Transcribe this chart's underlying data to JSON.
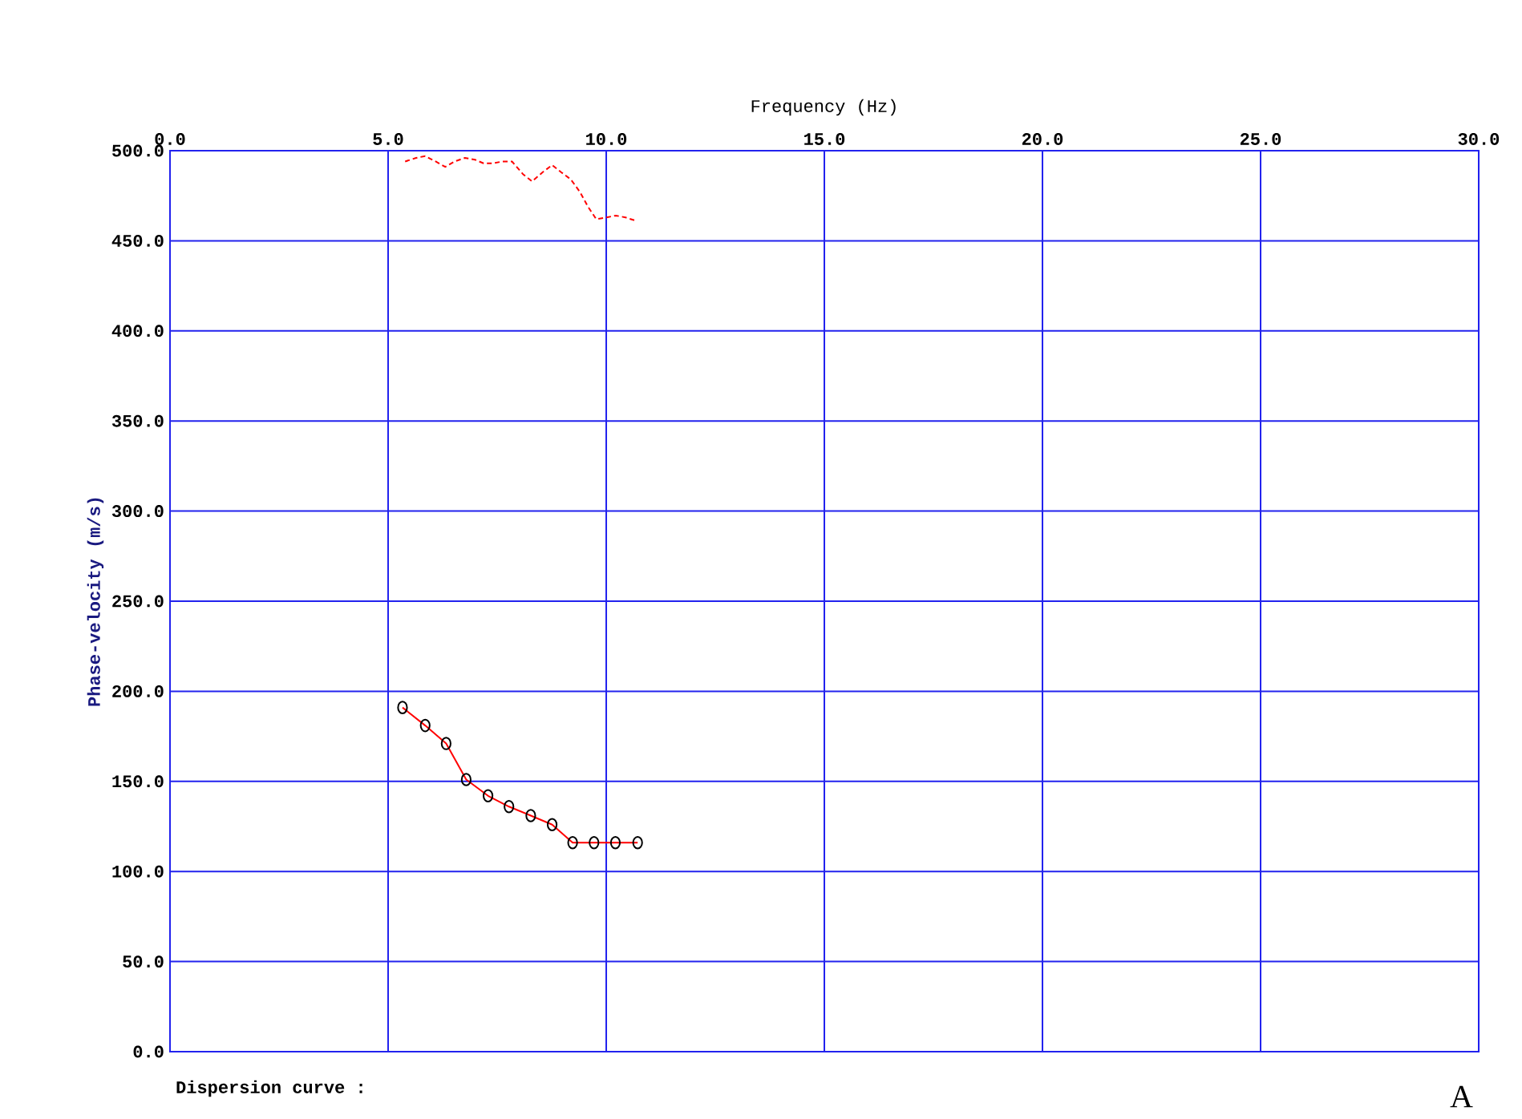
{
  "chart_data": {
    "type": "line",
    "xlabel": "Frequency (Hz)",
    "ylabel": "Phase-velocity (m/s)",
    "xlim": [
      0,
      30
    ],
    "ylim": [
      0,
      500
    ],
    "xticks": [
      {
        "value": 0,
        "label": "0.0"
      },
      {
        "value": 5,
        "label": "5.0"
      },
      {
        "value": 10,
        "label": "10.0"
      },
      {
        "value": 15,
        "label": "15.0"
      },
      {
        "value": 20,
        "label": "20.0"
      },
      {
        "value": 25,
        "label": "25.0"
      },
      {
        "value": 30,
        "label": "30.0"
      }
    ],
    "yticks": [
      {
        "value": 0,
        "label": "0.0"
      },
      {
        "value": 50,
        "label": "50.0"
      },
      {
        "value": 100,
        "label": "100.0"
      },
      {
        "value": 150,
        "label": "150.0"
      },
      {
        "value": 200,
        "label": "200.0"
      },
      {
        "value": 250,
        "label": "250.0"
      },
      {
        "value": 300,
        "label": "300.0"
      },
      {
        "value": 350,
        "label": "350.0"
      },
      {
        "value": 400,
        "label": "400.0"
      },
      {
        "value": 450,
        "label": "450.0"
      },
      {
        "value": 500,
        "label": "500.0"
      }
    ],
    "grid": true,
    "series": [
      {
        "color": "#ff0000",
        "marker": "circle",
        "line_style": "solid",
        "x": [
          5.33,
          5.85,
          6.33,
          6.79,
          7.29,
          7.77,
          8.27,
          8.76,
          9.23,
          9.72,
          10.21,
          10.72
        ],
        "values": [
          191,
          181,
          171,
          151,
          142,
          136,
          131,
          126,
          116,
          116,
          116,
          116
        ]
      },
      {
        "color": "#ff0000",
        "marker": "none",
        "line_style": "dashed",
        "x": [
          5.39,
          5.64,
          5.85,
          6.09,
          6.31,
          6.52,
          6.76,
          6.99,
          7.19,
          7.4,
          7.62,
          7.84,
          8.09,
          8.3,
          8.54,
          8.76,
          8.97,
          9.19,
          9.4,
          9.58,
          9.77,
          10.01,
          10.22,
          10.44,
          10.69
        ],
        "values": [
          494,
          496,
          497,
          494,
          491,
          494,
          496,
          495,
          493,
          493,
          494,
          494,
          487,
          483,
          488,
          492,
          488,
          484,
          477,
          469,
          462,
          463,
          464,
          463,
          461
        ]
      }
    ],
    "annotations": [
      "Dispersion curve :",
      "A"
    ]
  }
}
